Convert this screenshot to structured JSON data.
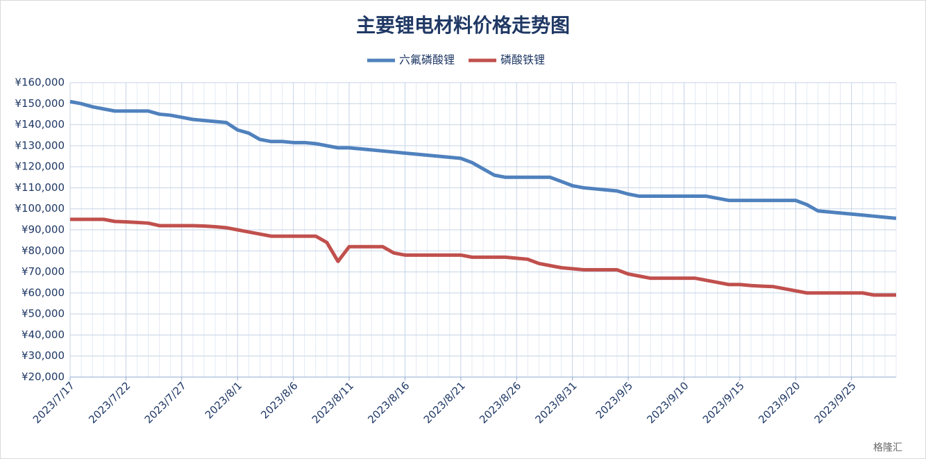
{
  "chart_data": {
    "type": "line",
    "title": "主要锂电材料价格走势图",
    "watermark": "格隆汇",
    "categories": [
      "2023/7/17",
      null,
      null,
      null,
      null,
      "2023/7/22",
      null,
      null,
      null,
      null,
      "2023/7/27",
      null,
      null,
      null,
      null,
      "2023/8/1",
      null,
      null,
      null,
      null,
      "2023/8/6",
      null,
      null,
      null,
      null,
      "2023/8/11",
      null,
      null,
      null,
      null,
      "2023/8/16",
      null,
      null,
      null,
      null,
      "2023/8/21",
      null,
      null,
      null,
      null,
      "2023/8/26",
      null,
      null,
      null,
      null,
      "2023/8/31",
      null,
      null,
      null,
      null,
      "2023/9/5",
      null,
      null,
      null,
      null,
      "2023/9/10",
      null,
      null,
      null,
      null,
      "2023/9/15",
      null,
      null,
      null,
      null,
      "2023/9/20",
      null,
      null,
      null,
      null,
      "2023/9/25",
      null,
      null,
      null,
      null
    ],
    "series": [
      {
        "name": "六氟磷酸锂",
        "color": "#4f81bd",
        "values": [
          151000,
          150000,
          148500,
          147500,
          146500,
          146500,
          146500,
          146500,
          145000,
          144500,
          143500,
          142500,
          142000,
          141500,
          141000,
          137500,
          136000,
          133000,
          132000,
          132000,
          131500,
          131500,
          131000,
          130000,
          129000,
          129000,
          128500,
          128000,
          127500,
          127000,
          126500,
          126000,
          125500,
          125000,
          124500,
          124000,
          122000,
          119000,
          116000,
          115000,
          115000,
          115000,
          115000,
          115000,
          113000,
          111000,
          110000,
          109500,
          109000,
          108500,
          107000,
          106000,
          106000,
          106000,
          106000,
          106000,
          106000,
          106000,
          105000,
          104000,
          104000,
          104000,
          104000,
          104000,
          104000,
          104000,
          102000,
          99000,
          98500,
          98000,
          97500,
          97000,
          96500,
          96000,
          95500
        ]
      },
      {
        "name": "磷酸铁锂",
        "color": "#c0504d",
        "values": [
          95000,
          95000,
          95000,
          95000,
          94000,
          93800,
          93500,
          93200,
          92000,
          92000,
          92000,
          92000,
          91800,
          91500,
          91000,
          90000,
          89000,
          88000,
          87000,
          87000,
          87000,
          87000,
          87000,
          84000,
          75000,
          82000,
          82000,
          82000,
          82000,
          79000,
          78000,
          78000,
          78000,
          78000,
          78000,
          78000,
          77000,
          77000,
          77000,
          77000,
          76500,
          76000,
          74000,
          73000,
          72000,
          71500,
          71000,
          71000,
          71000,
          71000,
          69000,
          68000,
          67000,
          67000,
          67000,
          67000,
          67000,
          66000,
          65000,
          64000,
          64000,
          63500,
          63200,
          63000,
          62000,
          61000,
          60000,
          60000,
          60000,
          60000,
          60000,
          60000,
          59000,
          59000,
          59000
        ]
      }
    ],
    "ylim": [
      20000,
      160000
    ],
    "yticks": [
      {
        "value": 20000,
        "label": "¥20,000"
      },
      {
        "value": 30000,
        "label": "¥30,000"
      },
      {
        "value": 40000,
        "label": "¥40,000"
      },
      {
        "value": 50000,
        "label": "¥50,000"
      },
      {
        "value": 60000,
        "label": "¥60,000"
      },
      {
        "value": 70000,
        "label": "¥70,000"
      },
      {
        "value": 80000,
        "label": "¥80,000"
      },
      {
        "value": 90000,
        "label": "¥90,000"
      },
      {
        "value": 100000,
        "label": "¥100,000"
      },
      {
        "value": 110000,
        "label": "¥110,000"
      },
      {
        "value": 120000,
        "label": "¥120,000"
      },
      {
        "value": 130000,
        "label": "¥130,000"
      },
      {
        "value": 140000,
        "label": "¥140,000"
      },
      {
        "value": 150000,
        "label": "¥150,000"
      },
      {
        "value": 160000,
        "label": "¥160,000"
      }
    ],
    "grid": true,
    "legend": "top"
  }
}
